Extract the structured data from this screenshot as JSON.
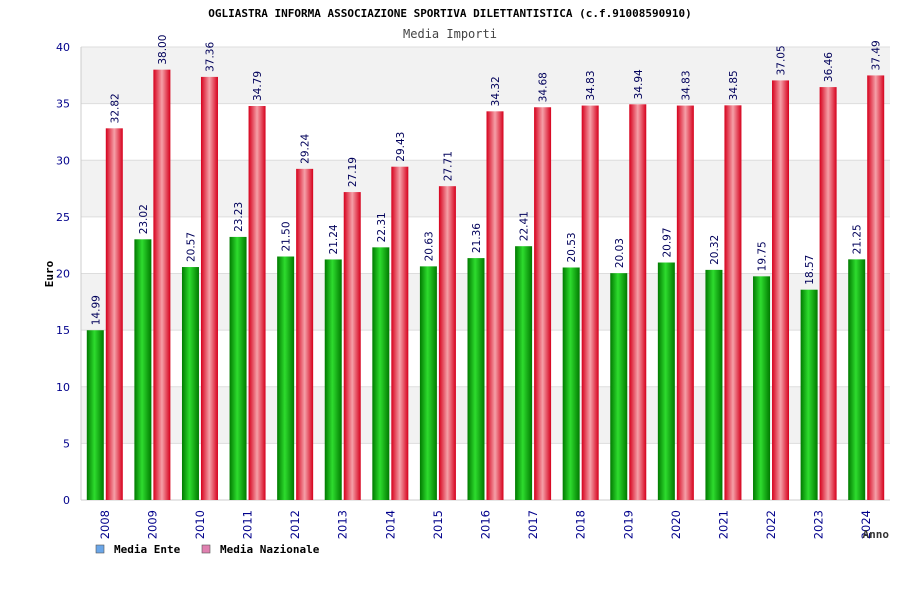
{
  "chart_data": {
    "type": "bar",
    "title": "OGLIASTRA INFORMA ASSOCIAZIONE SPORTIVA DILETTANTISTICA (c.f.91008590910)",
    "subtitle": "Media Importi",
    "xlabel": "Anno",
    "ylabel": "Euro",
    "ylim": [
      0,
      40
    ],
    "yticks": [
      0,
      5,
      10,
      15,
      20,
      25,
      30,
      35,
      40
    ],
    "grid": true,
    "legend_position": "bottom-left",
    "categories": [
      "2008",
      "2009",
      "2010",
      "2011",
      "2012",
      "2013",
      "2014",
      "2015",
      "2016",
      "2017",
      "2018",
      "2019",
      "2020",
      "2021",
      "2022",
      "2023",
      "2024"
    ],
    "series": [
      {
        "name": "Media Ente",
        "legend_color": "#6aa6e8",
        "bar_color": "#00a800",
        "values": [
          14.99,
          23.02,
          20.57,
          23.23,
          21.5,
          21.24,
          22.31,
          20.63,
          21.36,
          22.41,
          20.53,
          20.03,
          20.97,
          20.32,
          19.75,
          18.57,
          21.25
        ],
        "labels": [
          "14.99",
          "23.02",
          "20.57",
          "23.23",
          "21.50",
          "21.24",
          "22.31",
          "20.63",
          "21.36",
          "22.41",
          "20.53",
          "20.03",
          "20.97",
          "20.32",
          "19.75",
          "18.57",
          "21.25"
        ]
      },
      {
        "name": "Media Nazionale",
        "legend_color": "#e080b0",
        "bar_color": "#e8202c",
        "values": [
          32.82,
          38.0,
          37.36,
          34.79,
          29.24,
          27.19,
          29.43,
          27.71,
          34.32,
          34.68,
          34.83,
          34.94,
          34.83,
          34.85,
          37.05,
          36.46,
          37.49
        ],
        "labels": [
          "32.82",
          "38.00",
          "37.36",
          "34.79",
          "29.24",
          "27.19",
          "29.43",
          "27.71",
          "34.32",
          "34.68",
          "34.83",
          "34.94",
          "34.83",
          "34.85",
          "37.05",
          "36.46",
          "37.49"
        ]
      }
    ]
  }
}
